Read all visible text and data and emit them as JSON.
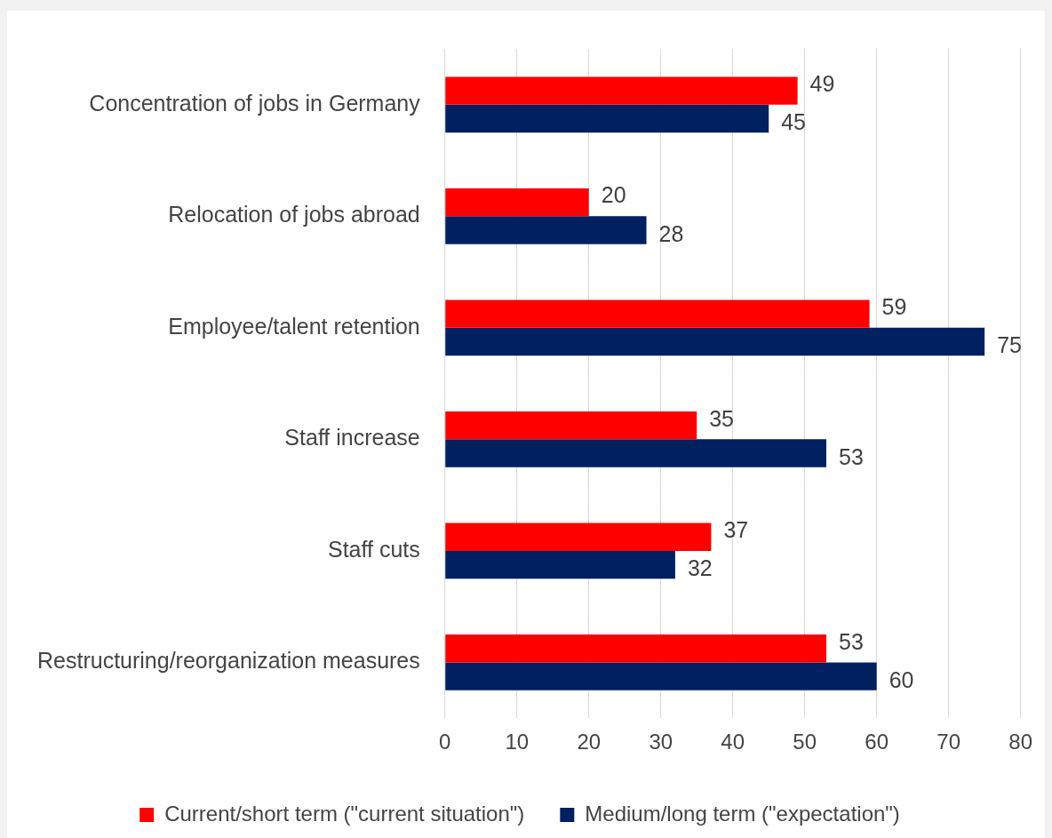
{
  "chart_data": {
    "type": "bar",
    "orientation": "horizontal",
    "categories": [
      "Concentration of jobs in Germany",
      "Relocation of jobs abroad",
      "Employee/talent retention",
      "Staff increase",
      "Staff cuts",
      "Restructuring/reorganization measures"
    ],
    "series": [
      {
        "name": "Current/short term (\"current situation\")",
        "color": "#ff0000",
        "values": [
          49,
          20,
          59,
          35,
          37,
          53
        ]
      },
      {
        "name": "Medium/long term (\"expectation\")",
        "color": "#002060",
        "values": [
          45,
          28,
          75,
          53,
          32,
          60
        ]
      }
    ],
    "xlim": [
      0,
      80
    ],
    "xticks": [
      0,
      10,
      20,
      30,
      40,
      50,
      60,
      70,
      80
    ],
    "grid": "x",
    "legend": "bottom",
    "data_labels": true
  }
}
